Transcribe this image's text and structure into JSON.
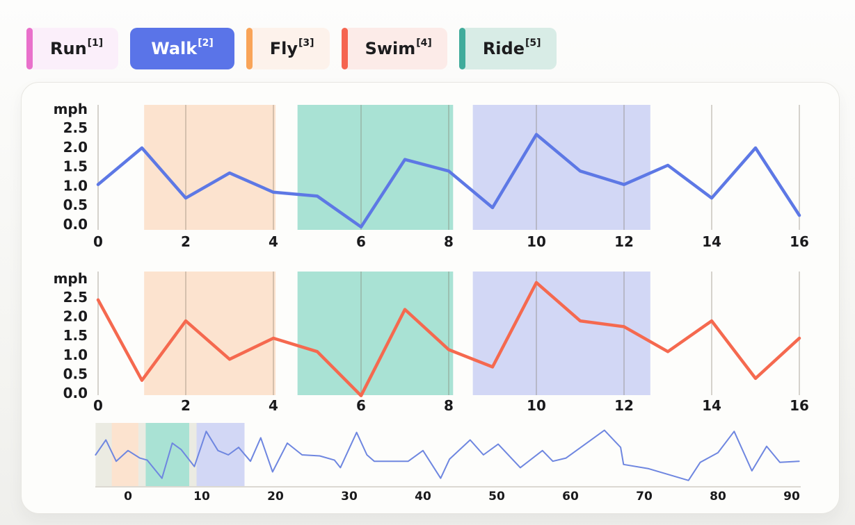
{
  "legend": {
    "items": [
      {
        "label": "Run",
        "sup": "[1]",
        "accent": "#e970cb",
        "bg": "#fbeffa",
        "text": "#1c1c1e",
        "selected": false
      },
      {
        "label": "Walk",
        "sup": "[2]",
        "accent": "#5a74e8",
        "bg": "#5a74e8",
        "text": "#ffffff",
        "selected": true
      },
      {
        "label": "Fly",
        "sup": "[3]",
        "accent": "#f9a458",
        "bg": "#fdf2eb",
        "text": "#1c1c1e",
        "selected": false
      },
      {
        "label": "Swim",
        "sup": "[4]",
        "accent": "#f56450",
        "bg": "#fcebe8",
        "text": "#1c1c1e",
        "selected": false
      },
      {
        "label": "Ride",
        "sup": "[5]",
        "accent": "#40ab9b",
        "bg": "#d8ece6",
        "text": "#1c1c1e",
        "selected": false
      }
    ]
  },
  "chart_data": [
    {
      "id": "walk",
      "type": "line",
      "ylabel": "mph",
      "line_color": "#5d78e5",
      "line_width": 4.5,
      "x": [
        0,
        1,
        2,
        3,
        4,
        5,
        6,
        7,
        8,
        9,
        10,
        11,
        12,
        13,
        14,
        15,
        16
      ],
      "values": [
        1.05,
        2.0,
        0.7,
        1.35,
        0.85,
        0.75,
        -0.05,
        1.7,
        1.4,
        0.45,
        2.35,
        1.4,
        1.05,
        1.55,
        0.7,
        2.0,
        0.25
      ],
      "xticks": [
        "0",
        "2",
        "4",
        "6",
        "8",
        "10",
        "12",
        "14",
        "16"
      ],
      "yticks": [
        "2.5",
        "2.0",
        "1.5",
        "1.0",
        "0.5",
        "0.0"
      ],
      "xlim": [
        0,
        16
      ],
      "ylim": [
        0.0,
        2.5
      ],
      "grid": "vertical",
      "bands": [
        {
          "from": 1.05,
          "to": 4.05,
          "color": "#fce3cf"
        },
        {
          "from": 4.55,
          "to": 8.1,
          "color": "#a9e2d4"
        },
        {
          "from": 8.55,
          "to": 12.6,
          "color": "#d2d7f5"
        }
      ]
    },
    {
      "id": "swim",
      "type": "line",
      "ylabel": "mph",
      "line_color": "#f5694f",
      "line_width": 4.5,
      "x": [
        0,
        1,
        2,
        3,
        4,
        5,
        6,
        7,
        8,
        9,
        10,
        11,
        12,
        13,
        14,
        15,
        16
      ],
      "values": [
        2.45,
        0.35,
        1.9,
        0.9,
        1.45,
        1.1,
        -0.05,
        2.2,
        1.15,
        0.7,
        2.9,
        1.9,
        1.75,
        1.1,
        1.9,
        0.4,
        1.45
      ],
      "xticks": [
        "0",
        "2",
        "4",
        "6",
        "8",
        "10",
        "12",
        "14",
        "16"
      ],
      "yticks": [
        "2.5",
        "2.0",
        "1.5",
        "1.0",
        "0.5",
        "0.0"
      ],
      "xlim": [
        0,
        16
      ],
      "ylim": [
        0.0,
        2.5
      ],
      "grid": "vertical",
      "bands": [
        {
          "from": 1.05,
          "to": 4.05,
          "color": "#fce3cf"
        },
        {
          "from": 4.55,
          "to": 8.1,
          "color": "#a9e2d4"
        },
        {
          "from": 8.55,
          "to": 12.6,
          "color": "#d2d7f5"
        }
      ]
    },
    {
      "id": "overview",
      "type": "line",
      "line_color": "#6e86e0",
      "line_width": 2,
      "xticks": [
        "0",
        "10",
        "20",
        "30",
        "40",
        "50",
        "60",
        "70",
        "80",
        "90"
      ],
      "xlim": [
        -4.8,
        91.5
      ],
      "selection": {
        "from": -4.4,
        "to": 15.8,
        "color": "#ebebe2"
      },
      "bands": [
        {
          "from": -2.2,
          "to": 1.4,
          "color": "#fce3cf"
        },
        {
          "from": 2.4,
          "to": 8.3,
          "color": "#a9e2d4"
        },
        {
          "from": 9.3,
          "to": 15.8,
          "color": "#d2d7f5"
        }
      ],
      "points": [
        [
          -4.4,
          1.5
        ],
        [
          -3,
          2.2
        ],
        [
          -1.6,
          1.2
        ],
        [
          0,
          1.7
        ],
        [
          1.6,
          1.35
        ],
        [
          2.6,
          1.25
        ],
        [
          4.6,
          0.4
        ],
        [
          6,
          2.05
        ],
        [
          7.2,
          1.75
        ],
        [
          9,
          0.95
        ],
        [
          10.6,
          2.6
        ],
        [
          12.2,
          1.7
        ],
        [
          13.6,
          1.5
        ],
        [
          15,
          1.85
        ],
        [
          16.6,
          1.2
        ],
        [
          18,
          2.3
        ],
        [
          19.6,
          0.7
        ],
        [
          21.6,
          2.05
        ],
        [
          23.6,
          1.5
        ],
        [
          26,
          1.45
        ],
        [
          28,
          1.25
        ],
        [
          28.8,
          0.9
        ],
        [
          31,
          2.55
        ],
        [
          32.4,
          1.5
        ],
        [
          33.4,
          1.2
        ],
        [
          38,
          1.2
        ],
        [
          40,
          1.7
        ],
        [
          42.4,
          0.4
        ],
        [
          43.6,
          1.3
        ],
        [
          46.4,
          2.2
        ],
        [
          48.2,
          1.5
        ],
        [
          50.2,
          2.0
        ],
        [
          53.2,
          0.9
        ],
        [
          56.2,
          1.7
        ],
        [
          57.6,
          1.2
        ],
        [
          59.4,
          1.35
        ],
        [
          64.6,
          2.65
        ],
        [
          66.8,
          1.85
        ],
        [
          67.2,
          1.05
        ],
        [
          70.6,
          0.85
        ],
        [
          76,
          0.3
        ],
        [
          77.6,
          1.15
        ],
        [
          80,
          1.6
        ],
        [
          82.2,
          2.6
        ],
        [
          84.6,
          0.75
        ],
        [
          86.6,
          1.9
        ],
        [
          88.4,
          1.15
        ],
        [
          91,
          1.2
        ]
      ]
    }
  ],
  "style": {
    "gridline_color": "rgba(123,112,95,0.30)",
    "axis_line_color": "#dcd9d2"
  }
}
